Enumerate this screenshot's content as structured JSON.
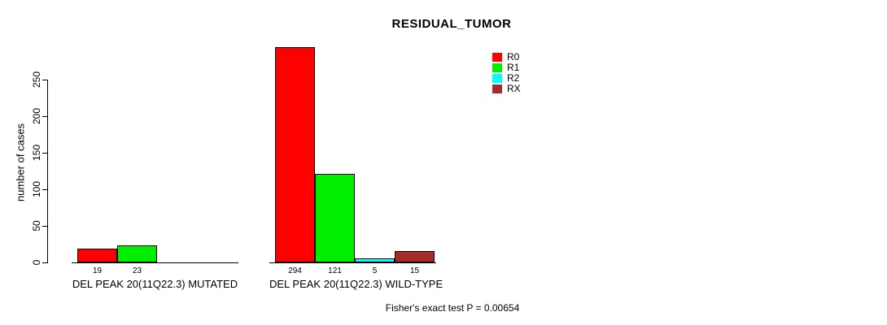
{
  "chart_data": {
    "type": "bar",
    "title": "RESIDUAL_TUMOR",
    "xlabel": "",
    "ylabel": "number of cases",
    "ylim": [
      0,
      250
    ],
    "yticks": [
      0,
      50,
      100,
      150,
      200,
      250
    ],
    "grid": false,
    "legend_position": "top-right",
    "categories": [
      "DEL PEAK 20(11Q22.3) MUTATED",
      "DEL PEAK 20(11Q22.3) WILD-TYPE"
    ],
    "series": [
      {
        "name": "R0",
        "color": "#ff0000",
        "values": [
          19,
          294
        ]
      },
      {
        "name": "R1",
        "color": "#00ee00",
        "values": [
          23,
          121
        ]
      },
      {
        "name": "R2",
        "color": "#00ffff",
        "values": [
          0,
          5
        ]
      },
      {
        "name": "RX",
        "color": "#a52a2a",
        "values": [
          0,
          15
        ]
      }
    ],
    "bar_value_labels": [
      [
        19,
        23,
        null,
        null
      ],
      [
        294,
        121,
        5,
        15
      ]
    ],
    "annotation": "Fisher's exact test P = 0.00654"
  }
}
